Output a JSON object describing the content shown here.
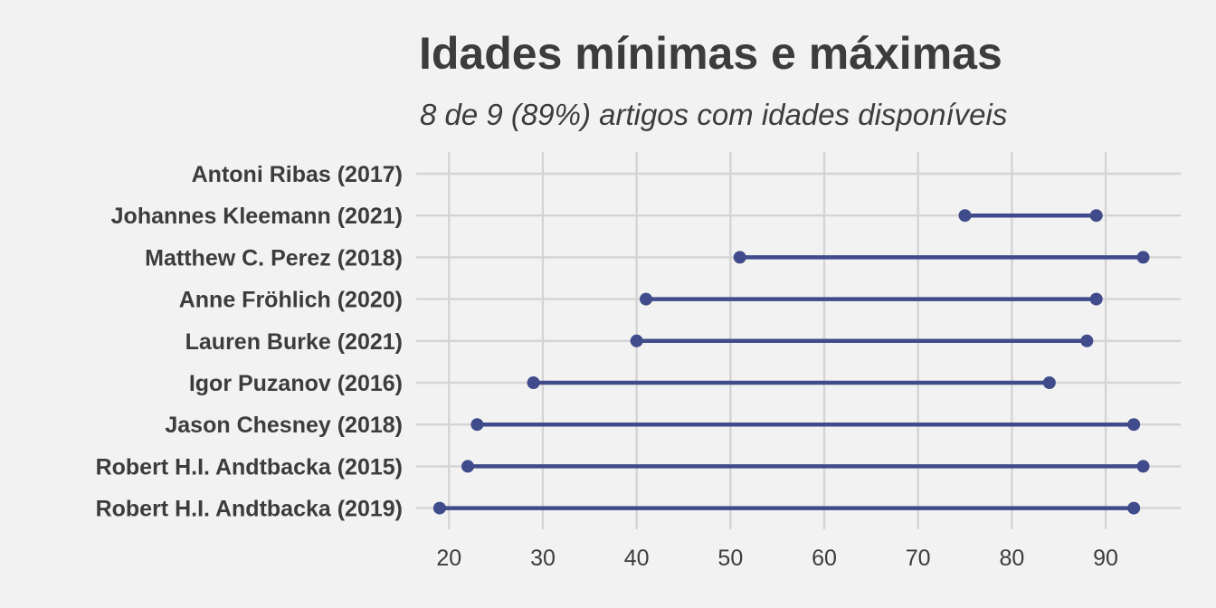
{
  "chart_data": {
    "type": "dumbbell",
    "title": "Idades mínimas e máximas",
    "subtitle": "8 de 9 (89%) artigos com idades disponíveis",
    "xlabel": "",
    "ylabel": "",
    "xlim": [
      16.5,
      98
    ],
    "xticks": [
      20,
      30,
      40,
      50,
      60,
      70,
      80,
      90
    ],
    "grid": true,
    "series_color": "#3f4b8a",
    "grid_color": "#d4d4d4",
    "background_color": "#f2f2f2",
    "categories": [
      "Antoni Ribas (2017)",
      "Johannes Kleemann (2021)",
      "Matthew C. Perez (2018)",
      "Anne Fröhlich (2020)",
      "Lauren Burke (2021)",
      "Igor Puzanov (2016)",
      "Jason Chesney (2018)",
      "Robert H.I. Andtbacka (2015)",
      "Robert H.I. Andtbacka (2019)"
    ],
    "min_age": [
      null,
      75,
      51,
      41,
      40,
      29,
      23,
      22,
      19
    ],
    "max_age": [
      null,
      89,
      94,
      89,
      88,
      84,
      93,
      94,
      93
    ]
  }
}
